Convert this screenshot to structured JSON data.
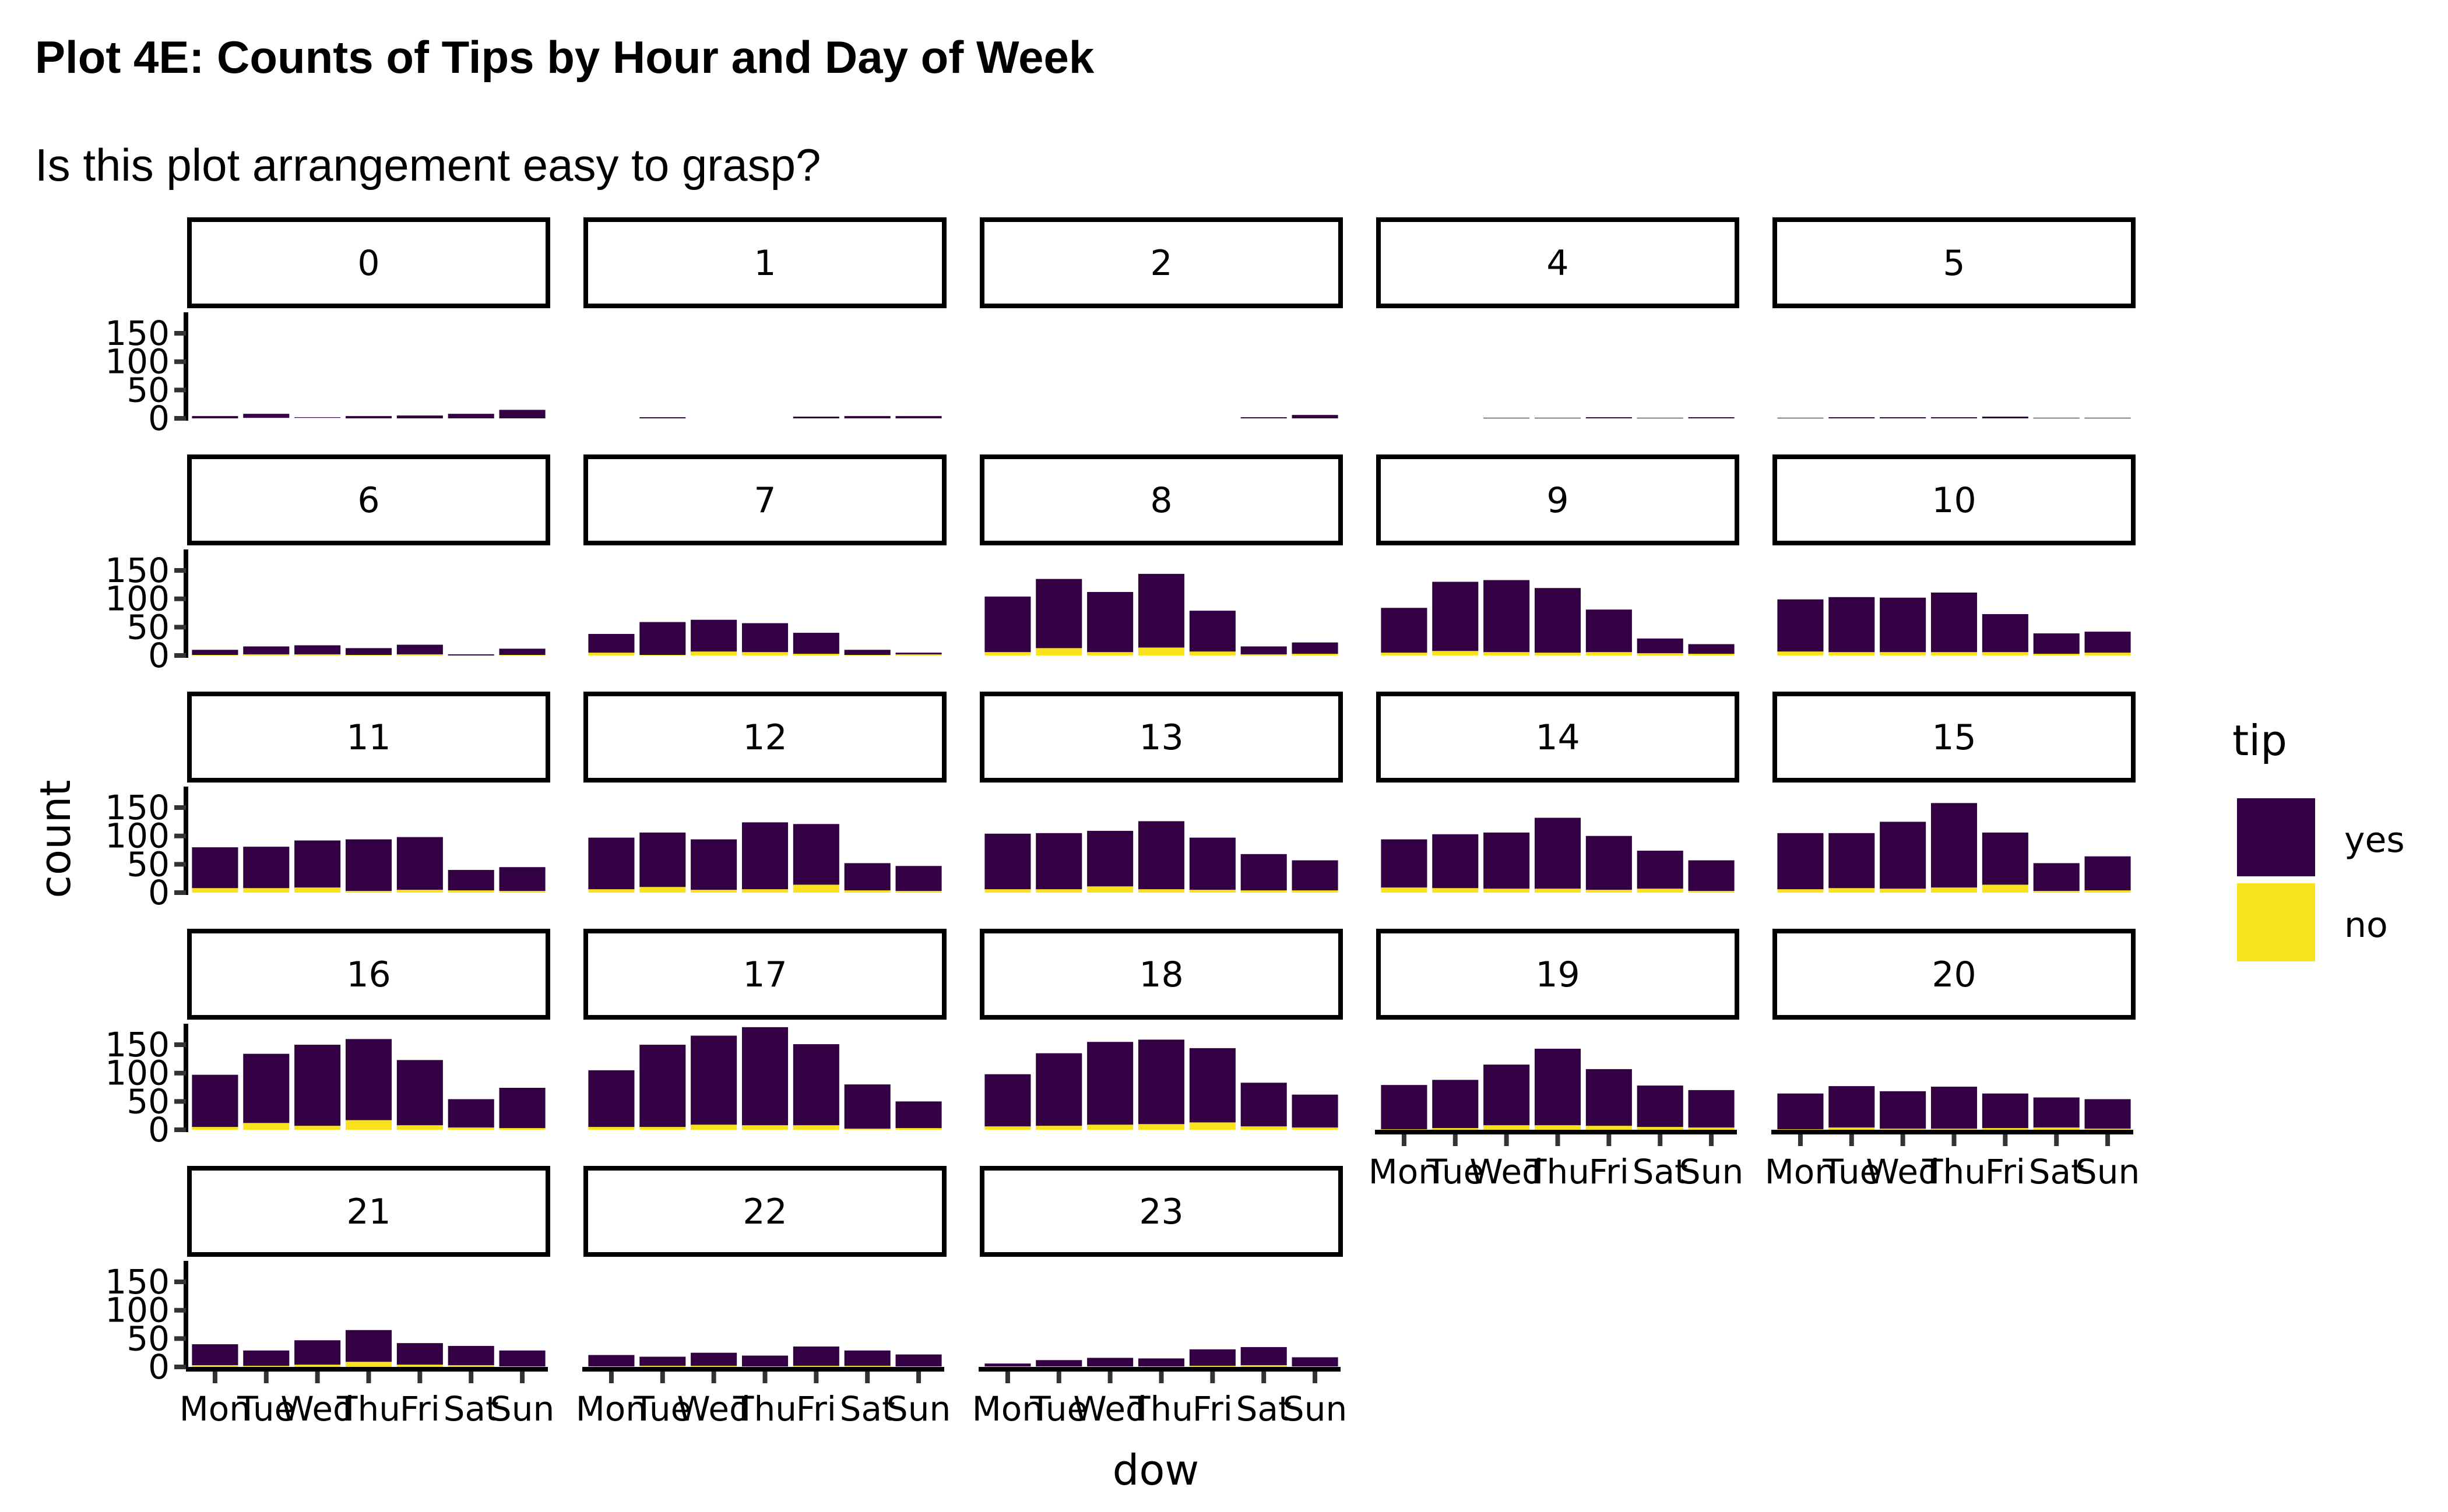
{
  "chart_data": {
    "type": "bar",
    "stacked": true,
    "faceted": true,
    "title": "Plot 4E: Counts of Tips by Hour and Day of Week",
    "subtitle": "Is this plot arrangement easy to grasp?",
    "xlabel": "dow",
    "ylabel": "count",
    "ylim": [
      0,
      185
    ],
    "y_ticks": [
      0,
      50,
      100,
      150
    ],
    "categories": [
      "Mon",
      "Tue",
      "Wed",
      "Thu",
      "Fri",
      "Sat",
      "Sun"
    ],
    "legend": {
      "title": "tip",
      "position": "right",
      "entries": [
        {
          "name": "yes",
          "color": "#330044"
        },
        {
          "name": "no",
          "color": "#F8E21E"
        }
      ]
    },
    "facets": [
      {
        "label": "0",
        "yes": [
          4,
          7,
          1,
          4,
          5,
          8,
          15
        ],
        "no": [
          0,
          1,
          1,
          0,
          0,
          0,
          0
        ]
      },
      {
        "label": "1",
        "yes": [
          0,
          2,
          0,
          0,
          3,
          4,
          4
        ],
        "no": [
          0,
          0,
          0,
          0,
          0,
          0,
          0
        ]
      },
      {
        "label": "2",
        "yes": [
          0,
          0,
          0,
          0,
          0,
          2,
          6
        ],
        "no": [
          0,
          0,
          0,
          0,
          0,
          0,
          0
        ]
      },
      {
        "label": "4",
        "yes": [
          0,
          0,
          1,
          1,
          2,
          1,
          2
        ],
        "no": [
          0,
          0,
          0,
          0,
          0,
          0,
          0
        ]
      },
      {
        "label": "5",
        "yes": [
          1,
          2,
          2,
          2,
          3,
          1,
          1
        ],
        "no": [
          0,
          0,
          0,
          0,
          0,
          0,
          0
        ]
      },
      {
        "label": "6",
        "yes": [
          9,
          14,
          16,
          12,
          17,
          2,
          11
        ],
        "no": [
          1,
          2,
          2,
          1,
          2,
          0,
          1
        ]
      },
      {
        "label": "7",
        "yes": [
          33,
          58,
          56,
          51,
          37,
          9,
          3
        ],
        "no": [
          5,
          1,
          7,
          6,
          3,
          1,
          2
        ]
      },
      {
        "label": "8",
        "yes": [
          98,
          122,
          106,
          130,
          72,
          14,
          20
        ],
        "no": [
          6,
          13,
          6,
          14,
          7,
          2,
          3
        ]
      },
      {
        "label": "9",
        "yes": [
          79,
          122,
          127,
          114,
          75,
          26,
          17
        ],
        "no": [
          5,
          8,
          6,
          5,
          6,
          4,
          3
        ]
      },
      {
        "label": "10",
        "yes": [
          92,
          97,
          96,
          105,
          67,
          36,
          37
        ],
        "no": [
          7,
          6,
          6,
          6,
          6,
          3,
          5
        ]
      },
      {
        "label": "11",
        "yes": [
          72,
          73,
          83,
          91,
          93,
          36,
          42
        ],
        "no": [
          8,
          8,
          9,
          3,
          5,
          4,
          3
        ]
      },
      {
        "label": "12",
        "yes": [
          91,
          96,
          89,
          118,
          107,
          48,
          44
        ],
        "no": [
          6,
          10,
          5,
          6,
          14,
          4,
          3
        ]
      },
      {
        "label": "13",
        "yes": [
          98,
          99,
          98,
          120,
          92,
          64,
          53
        ],
        "no": [
          6,
          6,
          11,
          6,
          5,
          4,
          4
        ]
      },
      {
        "label": "14",
        "yes": [
          85,
          95,
          99,
          125,
          95,
          67,
          54
        ],
        "no": [
          9,
          8,
          7,
          7,
          5,
          7,
          3
        ]
      },
      {
        "label": "15",
        "yes": [
          99,
          97,
          118,
          149,
          92,
          49,
          60
        ],
        "no": [
          6,
          8,
          7,
          9,
          14,
          3,
          4
        ]
      },
      {
        "label": "16",
        "yes": [
          92,
          122,
          143,
          143,
          115,
          50,
          71
        ],
        "no": [
          5,
          12,
          7,
          17,
          8,
          4,
          3
        ]
      },
      {
        "label": "17",
        "yes": [
          100,
          145,
          157,
          173,
          143,
          78,
          47
        ],
        "no": [
          5,
          5,
          9,
          8,
          8,
          2,
          3
        ]
      },
      {
        "label": "18",
        "yes": [
          92,
          128,
          146,
          149,
          131,
          77,
          58
        ],
        "no": [
          6,
          7,
          9,
          10,
          13,
          6,
          4
        ]
      },
      {
        "label": "19",
        "yes": [
          78,
          85,
          107,
          135,
          100,
          73,
          66
        ],
        "no": [
          1,
          3,
          8,
          8,
          7,
          5,
          4
        ]
      },
      {
        "label": "20",
        "yes": [
          63,
          73,
          66,
          74,
          61,
          53,
          52
        ],
        "no": [
          1,
          4,
          2,
          2,
          3,
          4,
          2
        ]
      },
      {
        "label": "21",
        "yes": [
          37,
          27,
          43,
          56,
          38,
          34,
          28
        ],
        "no": [
          3,
          2,
          4,
          9,
          4,
          3,
          1
        ]
      },
      {
        "label": "22",
        "yes": [
          20,
          16,
          23,
          19,
          34,
          27,
          21
        ],
        "no": [
          1,
          2,
          2,
          1,
          2,
          2,
          1
        ]
      },
      {
        "label": "23",
        "yes": [
          5,
          11,
          15,
          14,
          29,
          32,
          16
        ],
        "no": [
          1,
          1,
          1,
          1,
          2,
          3,
          1
        ]
      }
    ]
  }
}
